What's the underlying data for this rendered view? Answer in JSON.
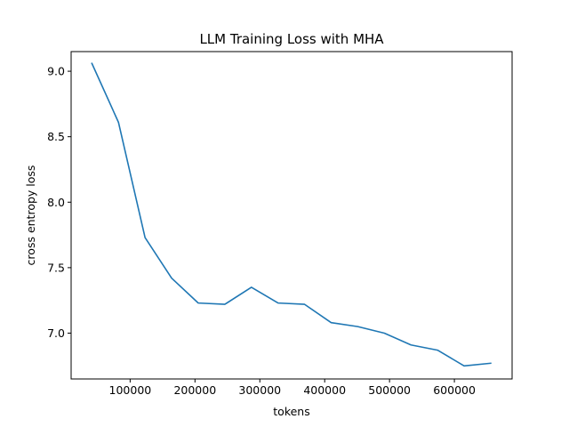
{
  "chart_data": {
    "type": "line",
    "title": "LLM Training Loss with MHA",
    "xlabel": "tokens",
    "ylabel": "cross entropy loss",
    "xlim": [
      9000,
      689000
    ],
    "ylim": [
      6.65,
      9.15
    ],
    "x_ticks": [
      100000,
      200000,
      300000,
      400000,
      500000,
      600000
    ],
    "x_tick_labels": [
      "100000",
      "200000",
      "300000",
      "400000",
      "500000",
      "600000"
    ],
    "y_ticks": [
      7.0,
      7.5,
      8.0,
      8.5,
      9.0
    ],
    "y_tick_labels": [
      "7.0",
      "7.5",
      "8.0",
      "8.5",
      "9.0"
    ],
    "grid": false,
    "line_color": "#1f77b4",
    "series": [
      {
        "x": [
          41000,
          82000,
          123000,
          164000,
          205000,
          246000,
          287000,
          328000,
          369000,
          410000,
          451000,
          492000,
          533000,
          574000,
          615000,
          656000
        ],
        "values": [
          9.06,
          8.61,
          7.73,
          7.42,
          7.23,
          7.22,
          7.35,
          7.23,
          7.22,
          7.08,
          7.05,
          7.0,
          6.91,
          6.87,
          6.75,
          6.77
        ]
      }
    ]
  }
}
